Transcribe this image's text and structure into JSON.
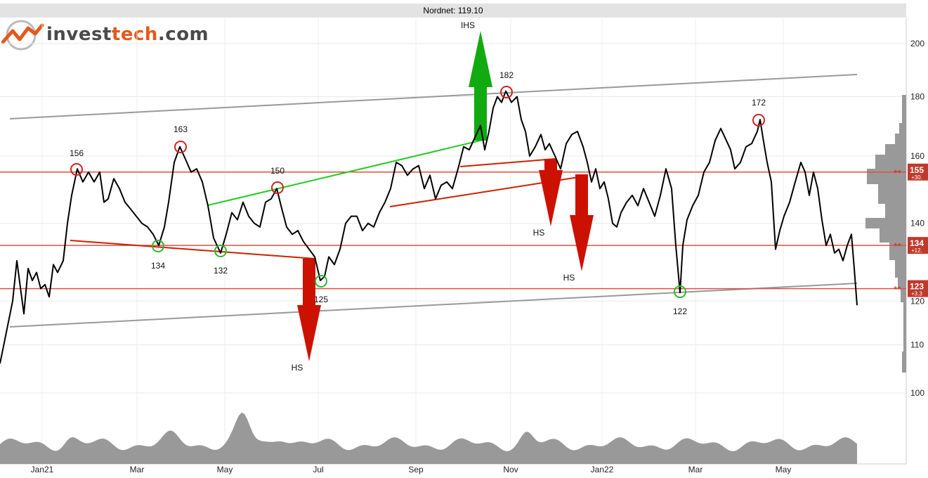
{
  "header": {
    "title": "Nordnet: 119.10"
  },
  "logo": {
    "part1": "invest",
    "part2": "tech",
    "part3": ".com"
  },
  "colors": {
    "price": "#000000",
    "support": "#2db82d",
    "resistance": "#d42020",
    "channel": "#999999",
    "up_arrow": "#11aa11",
    "down_arrow": "#cc1100",
    "level_line": "#e05040",
    "level_badge": "#c0392b",
    "volume": "#999999"
  },
  "chart_data": {
    "type": "line",
    "x_tick_labels": [
      "Jan21",
      "Mar",
      "May",
      "Jul",
      "Sep",
      "Nov",
      "Jan22",
      "Mar",
      "May"
    ],
    "y_tick_labels": [
      "200",
      "180",
      "160",
      "140",
      "120",
      "110",
      "100"
    ],
    "y_scale": "log",
    "ylim": [
      96,
      212
    ],
    "grid": true,
    "series": [
      {
        "values": [
          [
            0,
            106
          ],
          [
            8,
            112
          ],
          [
            18,
            120
          ],
          [
            24,
            130
          ],
          [
            30,
            122
          ],
          [
            34,
            117
          ],
          [
            40,
            128
          ],
          [
            46,
            125
          ],
          [
            52,
            127
          ],
          [
            58,
            123
          ],
          [
            64,
            124
          ],
          [
            70,
            121
          ],
          [
            76,
            129
          ],
          [
            82,
            127
          ],
          [
            90,
            130
          ],
          [
            96,
            140
          ],
          [
            102,
            148
          ],
          [
            110,
            156
          ],
          [
            118,
            152
          ],
          [
            126,
            155
          ],
          [
            134,
            152
          ],
          [
            142,
            155
          ],
          [
            148,
            146
          ],
          [
            154,
            147
          ],
          [
            162,
            153
          ],
          [
            170,
            150
          ],
          [
            178,
            146
          ],
          [
            186,
            144
          ],
          [
            194,
            142
          ],
          [
            202,
            140
          ],
          [
            210,
            139
          ],
          [
            218,
            137
          ],
          [
            226,
            134
          ],
          [
            234,
            139
          ],
          [
            240,
            146
          ],
          [
            248,
            158
          ],
          [
            256,
            163
          ],
          [
            264,
            159
          ],
          [
            272,
            155
          ],
          [
            280,
            156
          ],
          [
            288,
            152
          ],
          [
            296,
            145
          ],
          [
            304,
            136
          ],
          [
            314,
            132
          ],
          [
            322,
            137
          ],
          [
            330,
            143
          ],
          [
            338,
            141
          ],
          [
            346,
            146
          ],
          [
            354,
            142
          ],
          [
            362,
            140
          ],
          [
            370,
            139
          ],
          [
            378,
            146
          ],
          [
            386,
            147
          ],
          [
            394,
            150
          ],
          [
            400,
            145
          ],
          [
            408,
            139
          ],
          [
            416,
            137
          ],
          [
            424,
            138
          ],
          [
            432,
            135
          ],
          [
            440,
            133
          ],
          [
            448,
            131
          ],
          [
            456,
            125
          ],
          [
            462,
            126
          ],
          [
            468,
            131
          ],
          [
            476,
            129
          ],
          [
            484,
            133
          ],
          [
            492,
            140
          ],
          [
            500,
            142
          ],
          [
            508,
            142
          ],
          [
            516,
            138
          ],
          [
            524,
            140
          ],
          [
            532,
            139
          ],
          [
            540,
            143
          ],
          [
            548,
            146
          ],
          [
            556,
            150
          ],
          [
            564,
            158
          ],
          [
            572,
            157
          ],
          [
            580,
            154
          ],
          [
            588,
            156
          ],
          [
            596,
            157
          ],
          [
            604,
            150
          ],
          [
            612,
            154
          ],
          [
            620,
            147
          ],
          [
            628,
            151
          ],
          [
            636,
            152
          ],
          [
            644,
            150
          ],
          [
            652,
            156
          ],
          [
            660,
            163
          ],
          [
            668,
            162
          ],
          [
            676,
            166
          ],
          [
            684,
            170
          ],
          [
            690,
            162
          ],
          [
            696,
            168
          ],
          [
            702,
            176
          ],
          [
            708,
            180
          ],
          [
            714,
            178
          ],
          [
            720,
            182
          ],
          [
            728,
            178
          ],
          [
            736,
            180
          ],
          [
            742,
            172
          ],
          [
            748,
            168
          ],
          [
            754,
            160
          ],
          [
            762,
            163
          ],
          [
            770,
            167
          ],
          [
            776,
            162
          ],
          [
            782,
            164
          ],
          [
            790,
            160
          ],
          [
            798,
            156
          ],
          [
            806,
            164
          ],
          [
            814,
            167
          ],
          [
            822,
            168
          ],
          [
            830,
            163
          ],
          [
            836,
            158
          ],
          [
            842,
            152
          ],
          [
            848,
            156
          ],
          [
            854,
            150
          ],
          [
            860,
            152
          ],
          [
            866,
            147
          ],
          [
            872,
            140
          ],
          [
            878,
            139
          ],
          [
            884,
            143
          ],
          [
            892,
            146
          ],
          [
            900,
            148
          ],
          [
            908,
            145
          ],
          [
            916,
            150
          ],
          [
            924,
            146
          ],
          [
            932,
            142
          ],
          [
            940,
            148
          ],
          [
            948,
            156
          ],
          [
            956,
            150
          ],
          [
            962,
            134
          ],
          [
            968,
            122
          ],
          [
            972,
            134
          ],
          [
            978,
            141
          ],
          [
            986,
            145
          ],
          [
            994,
            148
          ],
          [
            1002,
            155
          ],
          [
            1010,
            158
          ],
          [
            1018,
            165
          ],
          [
            1026,
            169
          ],
          [
            1034,
            165
          ],
          [
            1040,
            162
          ],
          [
            1046,
            156
          ],
          [
            1054,
            158
          ],
          [
            1062,
            163
          ],
          [
            1070,
            164
          ],
          [
            1078,
            168
          ],
          [
            1082,
            172
          ],
          [
            1086,
            166
          ],
          [
            1092,
            158
          ],
          [
            1098,
            152
          ],
          [
            1104,
            133
          ],
          [
            1110,
            138
          ],
          [
            1116,
            142
          ],
          [
            1124,
            146
          ],
          [
            1132,
            152
          ],
          [
            1140,
            158
          ],
          [
            1146,
            155
          ],
          [
            1152,
            148
          ],
          [
            1158,
            155
          ],
          [
            1164,
            150
          ],
          [
            1170,
            141
          ],
          [
            1176,
            134
          ],
          [
            1182,
            137
          ],
          [
            1188,
            132
          ],
          [
            1194,
            133
          ],
          [
            1200,
            130
          ],
          [
            1206,
            134
          ],
          [
            1212,
            137
          ],
          [
            1216,
            128
          ],
          [
            1220,
            119
          ]
        ]
      }
    ],
    "price_labels": [
      {
        "text": "156",
        "kind": "top"
      },
      {
        "text": "163",
        "kind": "top"
      },
      {
        "text": "150",
        "kind": "top"
      },
      {
        "text": "182",
        "kind": "top"
      },
      {
        "text": "172",
        "kind": "top"
      },
      {
        "text": "134",
        "kind": "bottom"
      },
      {
        "text": "132",
        "kind": "bottom"
      },
      {
        "text": "125",
        "kind": "bottom"
      },
      {
        "text": "122",
        "kind": "bottom"
      }
    ],
    "pattern_labels": [
      "IHS",
      "HS",
      "HS",
      "HS"
    ],
    "levels": [
      {
        "value": "155",
        "change": "+30."
      },
      {
        "value": "134",
        "change": "+12."
      },
      {
        "value": "123",
        "change": "+3.3"
      }
    ],
    "level_marker": "**",
    "visible_tick": "120"
  }
}
